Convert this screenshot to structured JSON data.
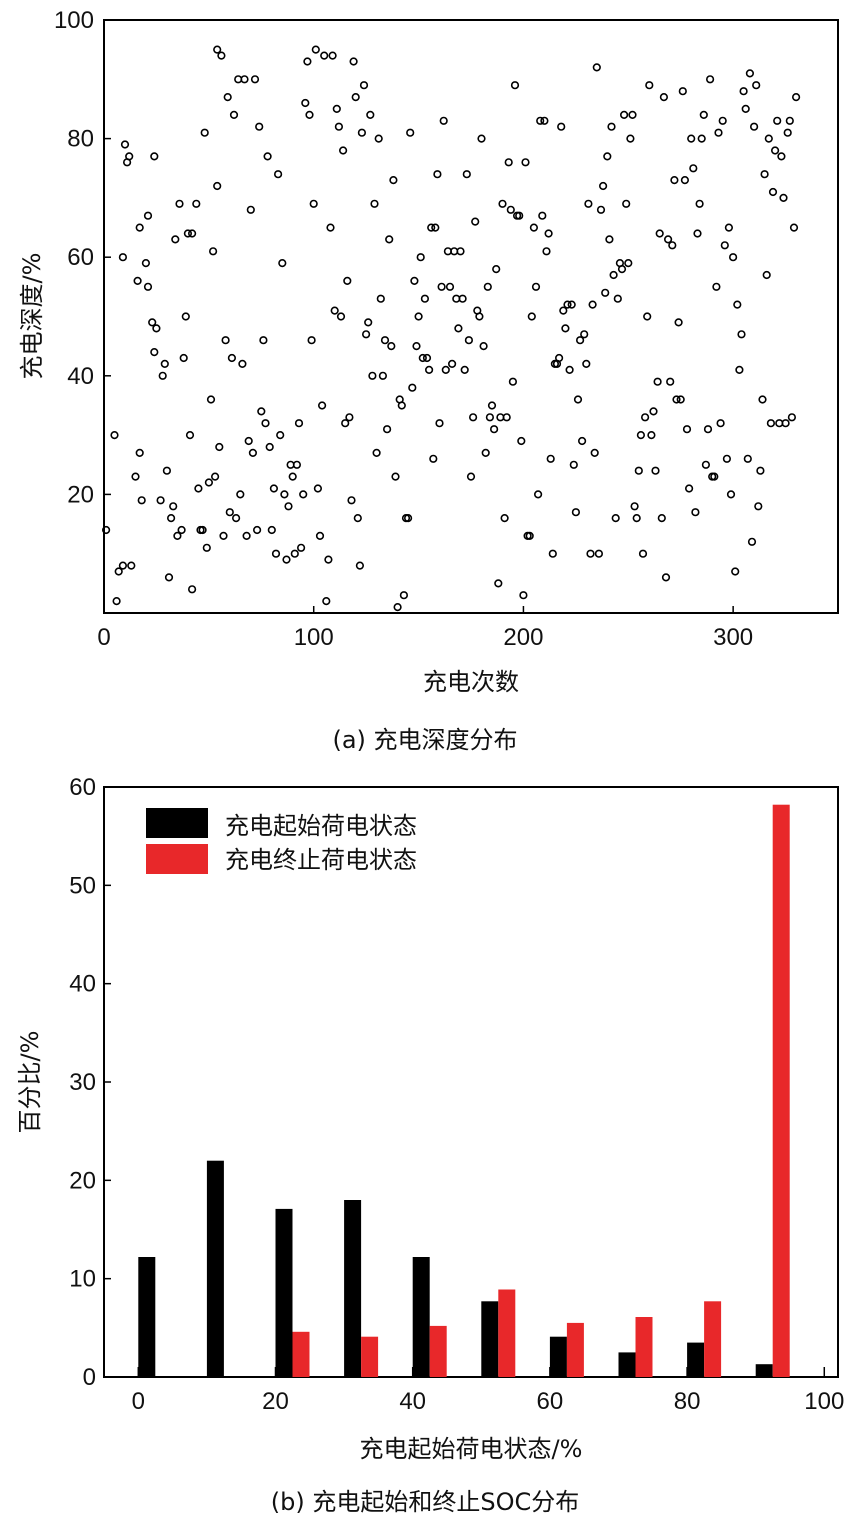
{
  "chart_data": [
    {
      "type": "scatter",
      "caption": "(a) 充电深度分布",
      "xlabel": "充电次数",
      "ylabel": "充电深度/%",
      "xlim": [
        0,
        350
      ],
      "ylim": [
        0,
        100
      ],
      "xticks": [
        0,
        100,
        200,
        300
      ],
      "yticks": [
        20,
        40,
        60,
        80,
        100
      ],
      "marker": "open-circle",
      "points": [
        [
          1,
          14
        ],
        [
          5,
          30
        ],
        [
          6,
          2
        ],
        [
          7,
          7
        ],
        [
          9,
          8
        ],
        [
          9,
          60
        ],
        [
          10,
          79
        ],
        [
          11,
          76
        ],
        [
          12,
          77
        ],
        [
          13,
          8
        ],
        [
          15,
          23
        ],
        [
          16,
          56
        ],
        [
          17,
          27
        ],
        [
          17,
          65
        ],
        [
          18,
          19
        ],
        [
          20,
          59
        ],
        [
          21,
          67
        ],
        [
          21,
          55
        ],
        [
          23,
          49
        ],
        [
          24,
          44
        ],
        [
          24,
          77
        ],
        [
          25,
          48
        ],
        [
          27,
          19
        ],
        [
          28,
          40
        ],
        [
          29,
          42
        ],
        [
          30,
          24
        ],
        [
          31,
          6
        ],
        [
          32,
          16
        ],
        [
          33,
          18
        ],
        [
          34,
          63
        ],
        [
          35,
          13
        ],
        [
          36,
          69
        ],
        [
          37,
          14
        ],
        [
          38,
          43
        ],
        [
          39,
          50
        ],
        [
          40,
          64
        ],
        [
          41,
          30
        ],
        [
          42,
          64
        ],
        [
          42,
          4
        ],
        [
          44,
          69
        ],
        [
          45,
          21
        ],
        [
          46,
          14
        ],
        [
          47,
          14
        ],
        [
          48,
          81
        ],
        [
          49,
          11
        ],
        [
          50,
          22
        ],
        [
          51,
          36
        ],
        [
          52,
          61
        ],
        [
          53,
          23
        ],
        [
          54,
          72
        ],
        [
          54,
          95
        ],
        [
          55,
          28
        ],
        [
          56,
          94
        ],
        [
          57,
          13
        ],
        [
          58,
          46
        ],
        [
          59,
          87
        ],
        [
          60,
          17
        ],
        [
          61,
          43
        ],
        [
          62,
          84
        ],
        [
          63,
          16
        ],
        [
          64,
          90
        ],
        [
          65,
          20
        ],
        [
          66,
          42
        ],
        [
          67,
          90
        ],
        [
          68,
          13
        ],
        [
          69,
          29
        ],
        [
          70,
          68
        ],
        [
          71,
          27
        ],
        [
          72,
          90
        ],
        [
          73,
          14
        ],
        [
          74,
          82
        ],
        [
          75,
          34
        ],
        [
          76,
          46
        ],
        [
          77,
          32
        ],
        [
          78,
          77
        ],
        [
          79,
          28
        ],
        [
          80,
          14
        ],
        [
          81,
          21
        ],
        [
          82,
          10
        ],
        [
          83,
          74
        ],
        [
          84,
          30
        ],
        [
          85,
          59
        ],
        [
          86,
          20
        ],
        [
          87,
          9
        ],
        [
          88,
          18
        ],
        [
          89,
          25
        ],
        [
          90,
          23
        ],
        [
          91,
          10
        ],
        [
          92,
          25
        ],
        [
          93,
          32
        ],
        [
          94,
          11
        ],
        [
          95,
          20
        ],
        [
          96,
          86
        ],
        [
          97,
          93
        ],
        [
          98,
          84
        ],
        [
          99,
          46
        ],
        [
          100,
          69
        ],
        [
          101,
          95
        ],
        [
          102,
          21
        ],
        [
          103,
          13
        ],
        [
          104,
          35
        ],
        [
          105,
          94
        ],
        [
          106,
          2
        ],
        [
          107,
          9
        ],
        [
          108,
          65
        ],
        [
          109,
          94
        ],
        [
          110,
          51
        ],
        [
          111,
          85
        ],
        [
          112,
          82
        ],
        [
          113,
          50
        ],
        [
          114,
          78
        ],
        [
          115,
          32
        ],
        [
          116,
          56
        ],
        [
          117,
          33
        ],
        [
          118,
          19
        ],
        [
          119,
          93
        ],
        [
          120,
          87
        ],
        [
          121,
          16
        ],
        [
          122,
          8
        ],
        [
          123,
          81
        ],
        [
          124,
          89
        ],
        [
          125,
          47
        ],
        [
          126,
          49
        ],
        [
          127,
          84
        ],
        [
          128,
          40
        ],
        [
          129,
          69
        ],
        [
          130,
          27
        ],
        [
          131,
          80
        ],
        [
          132,
          53
        ],
        [
          133,
          40
        ],
        [
          134,
          46
        ],
        [
          135,
          31
        ],
        [
          136,
          63
        ],
        [
          137,
          45
        ],
        [
          138,
          73
        ],
        [
          139,
          23
        ],
        [
          140,
          1
        ],
        [
          141,
          36
        ],
        [
          142,
          35
        ],
        [
          143,
          3
        ],
        [
          144,
          16
        ],
        [
          145,
          16
        ],
        [
          146,
          81
        ],
        [
          147,
          38
        ],
        [
          148,
          56
        ],
        [
          149,
          45
        ],
        [
          150,
          50
        ],
        [
          151,
          60
        ],
        [
          152,
          43
        ],
        [
          153,
          53
        ],
        [
          154,
          43
        ],
        [
          155,
          41
        ],
        [
          156,
          65
        ],
        [
          157,
          26
        ],
        [
          158,
          65
        ],
        [
          159,
          74
        ],
        [
          160,
          32
        ],
        [
          161,
          55
        ],
        [
          162,
          83
        ],
        [
          163,
          41
        ],
        [
          164,
          61
        ],
        [
          165,
          55
        ],
        [
          166,
          42
        ],
        [
          167,
          61
        ],
        [
          168,
          53
        ],
        [
          169,
          48
        ],
        [
          170,
          61
        ],
        [
          171,
          53
        ],
        [
          172,
          41
        ],
        [
          173,
          74
        ],
        [
          174,
          46
        ],
        [
          175,
          23
        ],
        [
          176,
          33
        ],
        [
          177,
          66
        ],
        [
          178,
          51
        ],
        [
          179,
          50
        ],
        [
          180,
          80
        ],
        [
          181,
          45
        ],
        [
          182,
          27
        ],
        [
          183,
          55
        ],
        [
          184,
          33
        ],
        [
          185,
          35
        ],
        [
          186,
          31
        ],
        [
          187,
          58
        ],
        [
          188,
          5
        ],
        [
          189,
          33
        ],
        [
          190,
          69
        ],
        [
          191,
          16
        ],
        [
          192,
          33
        ],
        [
          193,
          76
        ],
        [
          194,
          68
        ],
        [
          195,
          39
        ],
        [
          196,
          89
        ],
        [
          197,
          67
        ],
        [
          198,
          67
        ],
        [
          199,
          29
        ],
        [
          200,
          3
        ],
        [
          201,
          76
        ],
        [
          202,
          13
        ],
        [
          203,
          13
        ],
        [
          204,
          50
        ],
        [
          205,
          65
        ],
        [
          206,
          55
        ],
        [
          207,
          20
        ],
        [
          208,
          83
        ],
        [
          209,
          67
        ],
        [
          210,
          83
        ],
        [
          211,
          61
        ],
        [
          212,
          64
        ],
        [
          213,
          26
        ],
        [
          214,
          10
        ],
        [
          215,
          42
        ],
        [
          216,
          42
        ],
        [
          217,
          43
        ],
        [
          218,
          82
        ],
        [
          219,
          51
        ],
        [
          220,
          48
        ],
        [
          221,
          52
        ],
        [
          222,
          41
        ],
        [
          223,
          52
        ],
        [
          224,
          25
        ],
        [
          225,
          17
        ],
        [
          226,
          36
        ],
        [
          227,
          46
        ],
        [
          228,
          29
        ],
        [
          229,
          47
        ],
        [
          230,
          42
        ],
        [
          231,
          69
        ],
        [
          232,
          10
        ],
        [
          233,
          52
        ],
        [
          234,
          27
        ],
        [
          235,
          92
        ],
        [
          236,
          10
        ],
        [
          237,
          68
        ],
        [
          238,
          72
        ],
        [
          239,
          54
        ],
        [
          240,
          77
        ],
        [
          241,
          63
        ],
        [
          242,
          82
        ],
        [
          243,
          57
        ],
        [
          244,
          16
        ],
        [
          245,
          53
        ],
        [
          246,
          59
        ],
        [
          247,
          58
        ],
        [
          248,
          84
        ],
        [
          249,
          69
        ],
        [
          250,
          59
        ],
        [
          251,
          80
        ],
        [
          252,
          84
        ],
        [
          253,
          18
        ],
        [
          254,
          16
        ],
        [
          255,
          24
        ],
        [
          256,
          30
        ],
        [
          257,
          10
        ],
        [
          258,
          33
        ],
        [
          259,
          50
        ],
        [
          260,
          89
        ],
        [
          261,
          30
        ],
        [
          262,
          34
        ],
        [
          263,
          24
        ],
        [
          264,
          39
        ],
        [
          265,
          64
        ],
        [
          266,
          16
        ],
        [
          267,
          87
        ],
        [
          268,
          6
        ],
        [
          269,
          63
        ],
        [
          270,
          39
        ],
        [
          271,
          62
        ],
        [
          272,
          73
        ],
        [
          273,
          36
        ],
        [
          274,
          49
        ],
        [
          275,
          36
        ],
        [
          276,
          88
        ],
        [
          277,
          73
        ],
        [
          278,
          31
        ],
        [
          279,
          21
        ],
        [
          280,
          80
        ],
        [
          281,
          75
        ],
        [
          282,
          17
        ],
        [
          283,
          64
        ],
        [
          284,
          69
        ],
        [
          285,
          80
        ],
        [
          286,
          84
        ],
        [
          287,
          25
        ],
        [
          288,
          31
        ],
        [
          289,
          90
        ],
        [
          290,
          23
        ],
        [
          291,
          23
        ],
        [
          292,
          55
        ],
        [
          293,
          81
        ],
        [
          294,
          32
        ],
        [
          295,
          83
        ],
        [
          296,
          62
        ],
        [
          297,
          26
        ],
        [
          298,
          65
        ],
        [
          299,
          20
        ],
        [
          300,
          60
        ],
        [
          301,
          7
        ],
        [
          302,
          52
        ],
        [
          303,
          41
        ],
        [
          304,
          47
        ],
        [
          305,
          88
        ],
        [
          306,
          85
        ],
        [
          307,
          26
        ],
        [
          308,
          91
        ],
        [
          309,
          12
        ],
        [
          310,
          82
        ],
        [
          311,
          89
        ],
        [
          312,
          18
        ],
        [
          313,
          24
        ],
        [
          314,
          36
        ],
        [
          315,
          74
        ],
        [
          316,
          57
        ],
        [
          317,
          80
        ],
        [
          318,
          32
        ],
        [
          319,
          71
        ],
        [
          320,
          78
        ],
        [
          321,
          83
        ],
        [
          322,
          32
        ],
        [
          323,
          77
        ],
        [
          324,
          70
        ],
        [
          325,
          32
        ],
        [
          326,
          81
        ],
        [
          327,
          83
        ],
        [
          328,
          33
        ],
        [
          329,
          65
        ],
        [
          330,
          87
        ]
      ]
    },
    {
      "type": "bar",
      "caption": "(b) 充电起始和终止SOC分布",
      "xlabel": "充电起始荷电状态/%",
      "ylabel": "百分比/%",
      "xlim": [
        -5,
        102
      ],
      "ylim": [
        0,
        60
      ],
      "xticks": [
        0,
        20,
        40,
        60,
        80,
        100
      ],
      "yticks": [
        0,
        10,
        20,
        30,
        40,
        50,
        60
      ],
      "legend_position": "top-left",
      "categories": [
        0,
        10,
        20,
        30,
        40,
        50,
        60,
        70,
        80,
        90
      ],
      "series": [
        {
          "name": "充电起始荷电状态",
          "color": "#000000",
          "values": [
            12.2,
            22,
            17.1,
            18,
            12.2,
            7.7,
            4.1,
            2.5,
            3.5,
            1.3
          ]
        },
        {
          "name": "充电终止荷电状态",
          "color": "#e8282a",
          "values": [
            0,
            0,
            4.6,
            4.1,
            5.2,
            8.9,
            5.5,
            6.1,
            7.7,
            58.2
          ]
        }
      ]
    }
  ]
}
